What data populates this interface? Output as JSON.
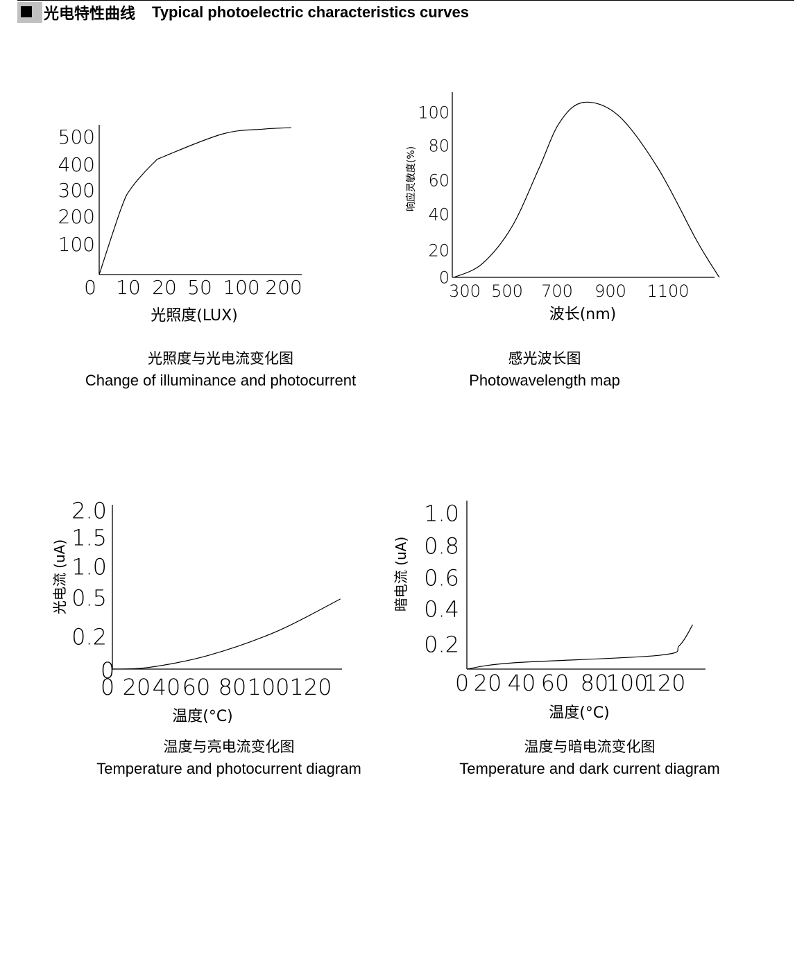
{
  "header": {
    "title_cn": "光电特性曲线",
    "title_en": "Typical photoelectric characteristics curves"
  },
  "chart_data": [
    {
      "type": "line",
      "title_cn": "光照度与光电流变化图",
      "title": "Change of illuminance and photocurrent",
      "xlabel": "光照度(LUX)",
      "ylabel": "",
      "x_ticks": [
        {
          "v": 0,
          "label": "0"
        },
        {
          "v": 10,
          "label": "10"
        },
        {
          "v": 20,
          "label": "20"
        },
        {
          "v": 50,
          "label": "50"
        },
        {
          "v": 100,
          "label": "100"
        },
        {
          "v": 200,
          "label": "200"
        }
      ],
      "y_ticks": [
        {
          "v": 0,
          "label": ""
        },
        {
          "v": 100,
          "label": "100"
        },
        {
          "v": 200,
          "label": "200"
        },
        {
          "v": 300,
          "label": "300"
        },
        {
          "v": 400,
          "label": "400"
        },
        {
          "v": 500,
          "label": "500"
        }
      ],
      "x": [
        0,
        7.6,
        11,
        17,
        20.6,
        78,
        152,
        218
      ],
      "y": [
        0,
        232,
        311,
        405,
        430,
        510,
        527,
        532
      ],
      "grid": false
    },
    {
      "type": "line",
      "title_cn": "感光波长图",
      "title": "Photowavelength map",
      "xlabel": "波长(nm)",
      "ylabel": "响应灵敏度(%)",
      "x_ticks": [
        {
          "v": 300,
          "label": "300"
        },
        {
          "v": 500,
          "label": "500"
        },
        {
          "v": 700,
          "label": "700"
        },
        {
          "v": 900,
          "label": "900"
        },
        {
          "v": 1100,
          "label": "1100"
        }
      ],
      "y_ticks": [
        {
          "v": 0,
          "label": "0"
        },
        {
          "v": 20,
          "label": "20"
        },
        {
          "v": 40,
          "label": "40"
        },
        {
          "v": 60,
          "label": "60"
        },
        {
          "v": 80,
          "label": "80"
        },
        {
          "v": 100,
          "label": "100"
        }
      ],
      "x": [
        250,
        382,
        519,
        628,
        710,
        800,
        928,
        1065,
        1201,
        1278
      ],
      "y": [
        0,
        10,
        33,
        67,
        94,
        106,
        98,
        67,
        25,
        0
      ],
      "grid": false
    },
    {
      "type": "line",
      "title_cn": "温度与亮电流变化图",
      "title": "Temperature and photocurrent diagram",
      "xlabel": "温度(°C)",
      "ylabel": "光电流 (uA)",
      "x_ticks": [
        {
          "v": 0,
          "label": "0"
        },
        {
          "v": 20,
          "label": "20"
        },
        {
          "v": 40,
          "label": "40"
        },
        {
          "v": 60,
          "label": "60"
        },
        {
          "v": 80,
          "label": "80"
        },
        {
          "v": 100,
          "label": "100"
        },
        {
          "v": 120,
          "label": "120"
        }
      ],
      "y_ticks": [
        {
          "v": 0,
          "label": ""
        },
        {
          "v": 0.2,
          "label": "0.2"
        },
        {
          "v": 0.5,
          "label": "0.5"
        },
        {
          "v": 1.0,
          "label": "1.0"
        },
        {
          "v": 1.5,
          "label": "1.5"
        },
        {
          "v": 2.0,
          "label": "2.0"
        }
      ],
      "x": [
        0,
        28,
        67,
        104,
        134
      ],
      "y": [
        0,
        0.01,
        0.085,
        0.24,
        0.49
      ],
      "grid": false
    },
    {
      "type": "line",
      "title_cn": "温度与暗电流变化图",
      "title": "Temperature and dark current diagram",
      "xlabel": "温度(°C)",
      "ylabel": "暗电流 (uA)",
      "x_ticks": [
        {
          "v": 0,
          "label": "0"
        },
        {
          "v": 20,
          "label": "20"
        },
        {
          "v": 40,
          "label": "40"
        },
        {
          "v": 60,
          "label": "60"
        },
        {
          "v": 80,
          "label": "80"
        },
        {
          "v": 100,
          "label": "100"
        },
        {
          "v": 120,
          "label": "120"
        }
      ],
      "y_ticks": [
        {
          "v": 0,
          "label": ""
        },
        {
          "v": 0.2,
          "label": "0.2"
        },
        {
          "v": 0.4,
          "label": "0.4"
        },
        {
          "v": 0.6,
          "label": "0.6"
        },
        {
          "v": 0.8,
          "label": "0.8"
        },
        {
          "v": 1.0,
          "label": "1.0"
        }
      ],
      "x": [
        0,
        35,
        117,
        128,
        135
      ],
      "y": [
        0,
        0.05,
        0.11,
        0.19,
        0.31
      ],
      "grid": false
    }
  ]
}
